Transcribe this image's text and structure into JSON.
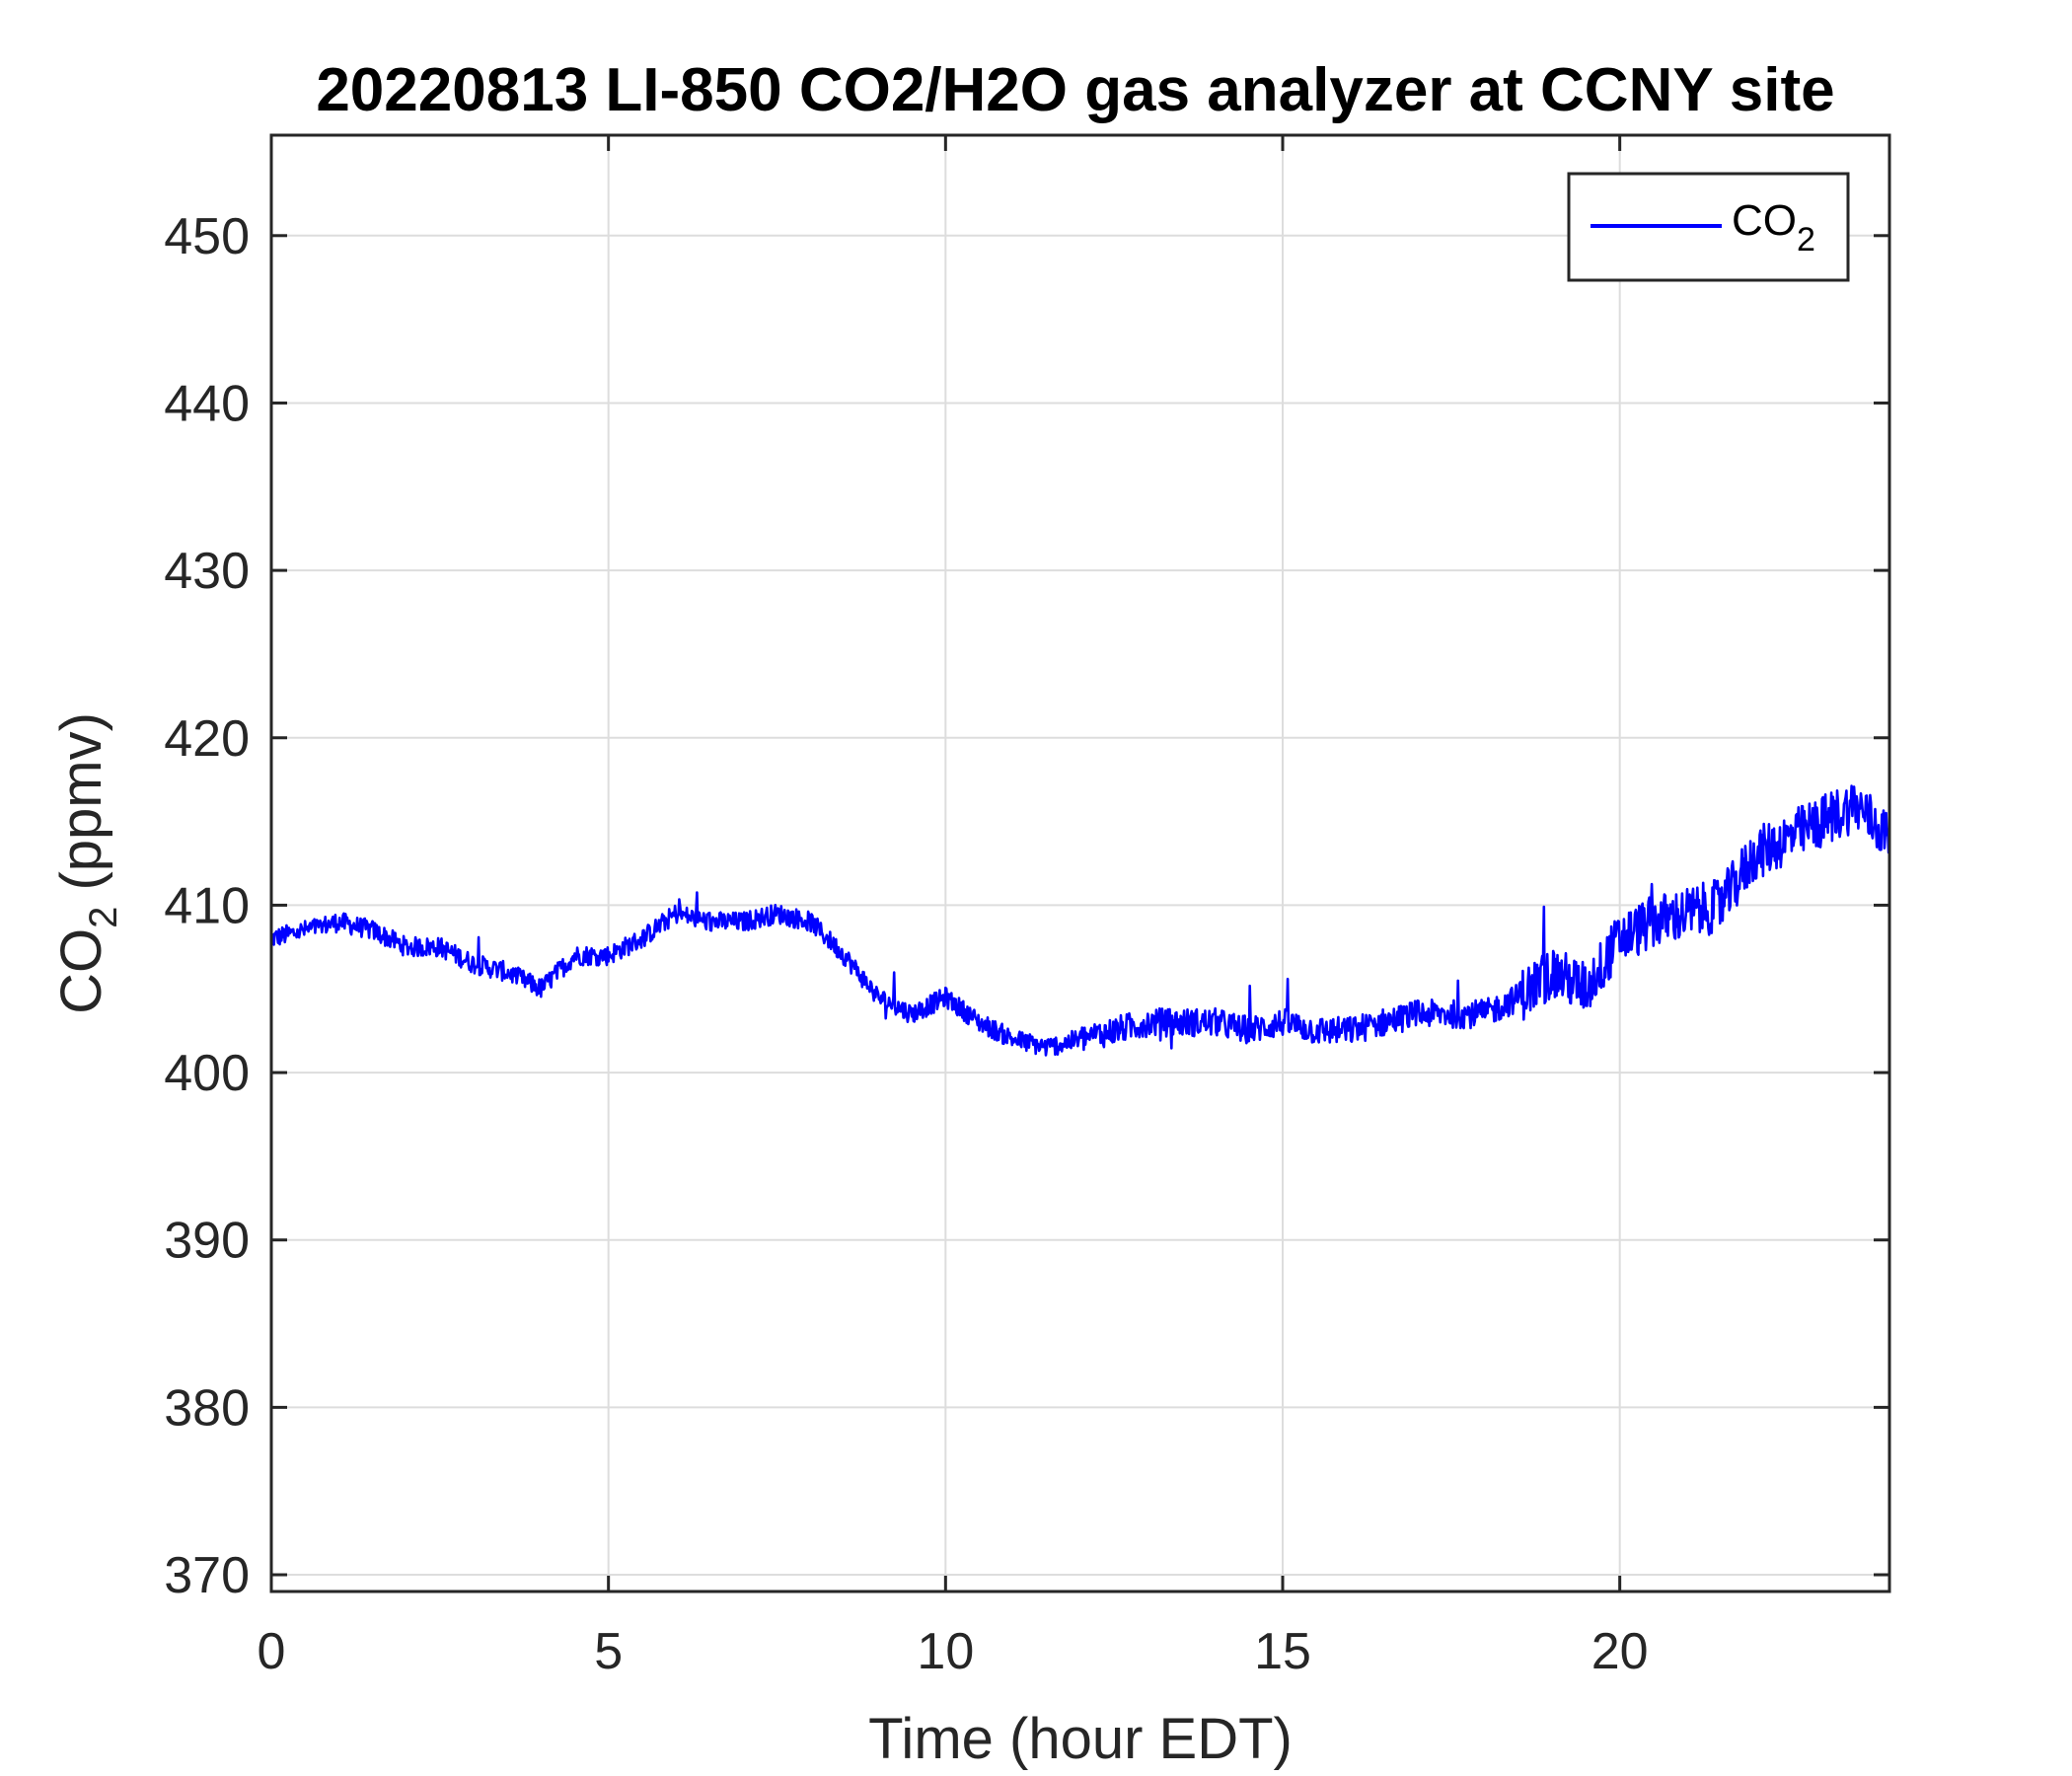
{
  "chart_data": {
    "type": "line",
    "title": "20220813 LI-850 CO2/H2O gas analyzer at CCNY site",
    "xlabel": "Time (hour EDT)",
    "ylabel_main": "CO",
    "ylabel_sub": "2",
    "ylabel_units": " (ppmv)",
    "xlim": [
      0,
      24
    ],
    "ylim": [
      369,
      456
    ],
    "xticks": [
      0,
      5,
      10,
      15,
      20
    ],
    "yticks": [
      370,
      380,
      390,
      400,
      410,
      420,
      430,
      440,
      450
    ],
    "grid": true,
    "legend_position": "top-right",
    "colors": {
      "line": "#0000ff",
      "grid": "#dddddd",
      "axis": "#262626"
    },
    "series": [
      {
        "name": "CO",
        "name_sub": "2",
        "x": [
          0,
          0.5,
          1,
          1.5,
          2,
          2.5,
          3,
          3.5,
          4,
          4.5,
          5,
          5.5,
          6,
          6.5,
          7,
          7.5,
          8,
          8.5,
          9,
          9.5,
          10,
          10.5,
          11,
          11.5,
          12,
          12.5,
          13,
          13.5,
          14,
          14.5,
          15,
          15.5,
          16,
          16.5,
          17,
          17.5,
          18,
          18.5,
          19,
          19.5,
          20,
          20.5,
          21,
          21.5,
          22,
          22.5,
          23,
          23.5,
          24
        ],
        "y": [
          408,
          408.5,
          409,
          408.5,
          407.5,
          407.5,
          406.5,
          406,
          405,
          407,
          407,
          408,
          409.5,
          409,
          409,
          409.5,
          409,
          407,
          404.5,
          403.5,
          404.5,
          403,
          402,
          401.5,
          402,
          402.5,
          403,
          403,
          403,
          402.5,
          403,
          402.5,
          402.5,
          403,
          403.5,
          403.5,
          403.5,
          404.5,
          406,
          405,
          408,
          409,
          409.5,
          410,
          413,
          414,
          415,
          416,
          414
        ]
      }
    ]
  }
}
